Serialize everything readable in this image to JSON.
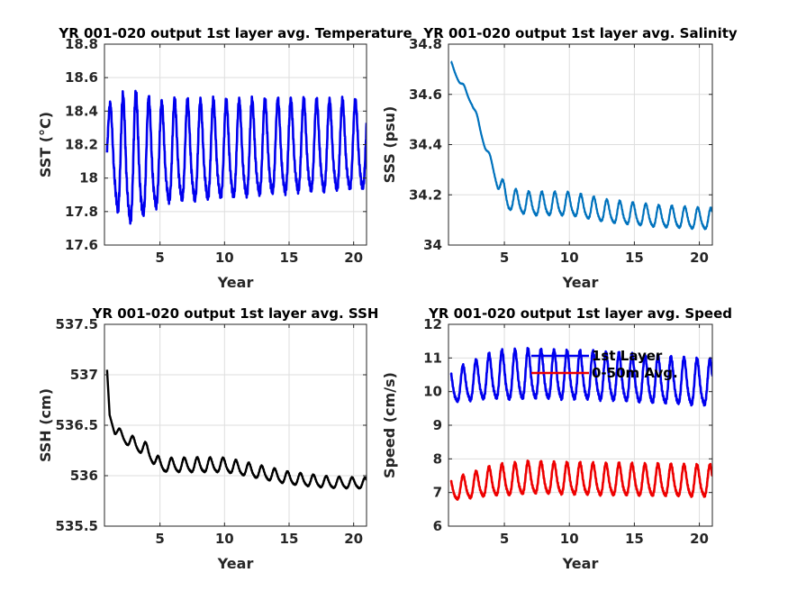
{
  "figure": {
    "background": "#ffffff",
    "grid": true
  },
  "chart_data": [
    {
      "type": "line",
      "title": "YR 001-020 output 1st layer avg. Temperature",
      "xlabel": "Year",
      "ylabel": "SST (°C)",
      "xlim": [
        0.7,
        21
      ],
      "ylim": [
        17.6,
        18.8
      ],
      "xticks": [
        5,
        10,
        15,
        20
      ],
      "yticks": [
        17.6,
        17.8,
        18,
        18.2,
        18.4,
        18.6,
        18.8
      ],
      "ytick_labels": [
        "17.6",
        "17.8",
        "18",
        "18.2",
        "18.4",
        "18.6",
        "18.8"
      ],
      "series": [
        {
          "color": "#0000ee",
          "line_width": 2.6,
          "model": "seasonal",
          "x_start": 0.9,
          "x_end": 21,
          "samples_per_year": 60,
          "baseline": [
            [
              0.9,
              18.2
            ],
            [
              2,
              18.07
            ],
            [
              4,
              18.1
            ],
            [
              6,
              18.13
            ],
            [
              10,
              18.14
            ],
            [
              14,
              18.16
            ],
            [
              21,
              18.17
            ]
          ],
          "amplitude": [
            [
              0.9,
              0.2
            ],
            [
              2,
              0.36
            ],
            [
              3,
              0.37
            ],
            [
              5,
              0.29
            ],
            [
              21,
              0.25
            ]
          ],
          "phase": -1.6
        }
      ]
    },
    {
      "type": "line",
      "title": "YR 001-020 output 1st layer avg. Salinity",
      "xlabel": "Year",
      "ylabel": "SSS (psu)",
      "xlim": [
        0.7,
        21
      ],
      "ylim": [
        34,
        34.8
      ],
      "xticks": [
        5,
        10,
        15,
        20
      ],
      "yticks": [
        34,
        34.2,
        34.4,
        34.6,
        34.8
      ],
      "ytick_labels": [
        "34",
        "34.2",
        "34.4",
        "34.6",
        "34.8"
      ],
      "series": [
        {
          "color": "#0072bd",
          "line_width": 2.2,
          "model": "seasonal",
          "x_start": 0.9,
          "x_end": 21,
          "samples_per_year": 60,
          "baseline": [
            [
              0.9,
              34.72
            ],
            [
              1.7,
              34.64
            ],
            [
              2.5,
              34.57
            ],
            [
              3.5,
              34.4
            ],
            [
              4.5,
              34.25
            ],
            [
              5.3,
              34.18
            ],
            [
              7,
              34.16
            ],
            [
              10,
              34.16
            ],
            [
              13,
              34.13
            ],
            [
              17,
              34.11
            ],
            [
              21,
              34.1
            ]
          ],
          "amplitude": [
            [
              0.9,
              0.01
            ],
            [
              4,
              0.015
            ],
            [
              5,
              0.04
            ],
            [
              7,
              0.045
            ],
            [
              21,
              0.04
            ]
          ],
          "phase": 0
        }
      ]
    },
    {
      "type": "line",
      "title": "YR 001-020 output 1st layer avg. SSH",
      "xlabel": "Year",
      "ylabel": "SSH (cm)",
      "xlim": [
        0.7,
        21
      ],
      "ylim": [
        535.5,
        537.5
      ],
      "xticks": [
        5,
        10,
        15,
        20
      ],
      "yticks": [
        535.5,
        536,
        536.5,
        537,
        537.5
      ],
      "ytick_labels": [
        "535.5",
        "536",
        "536.5",
        "537",
        "537.5"
      ],
      "series": [
        {
          "color": "#000000",
          "line_width": 2.4,
          "model": "seasonal",
          "x_start": 0.9,
          "x_end": 21,
          "samples_per_year": 60,
          "baseline": [
            [
              0.9,
              537.05
            ],
            [
              1.1,
              536.6
            ],
            [
              1.5,
              536.45
            ],
            [
              2.5,
              536.35
            ],
            [
              4,
              536.25
            ],
            [
              5,
              536.1
            ],
            [
              8,
              536.1
            ],
            [
              10,
              536.1
            ],
            [
              12,
              536.05
            ],
            [
              15,
              535.97
            ],
            [
              18,
              535.93
            ],
            [
              21,
              535.92
            ]
          ],
          "amplitude": [
            [
              0.9,
              0.0
            ],
            [
              1.5,
              0.04
            ],
            [
              3,
              0.06
            ],
            [
              8,
              0.07
            ],
            [
              21,
              0.05
            ]
          ],
          "phase": 0
        }
      ]
    },
    {
      "type": "line",
      "title": "YR 001-020 output 1st layer avg. Speed",
      "xlabel": "Year",
      "ylabel": "Speed (cm/s)",
      "xlim": [
        0.7,
        21
      ],
      "ylim": [
        6,
        12
      ],
      "xticks": [
        5,
        10,
        15,
        20
      ],
      "yticks": [
        6,
        7,
        8,
        9,
        10,
        11,
        12
      ],
      "ytick_labels": [
        "6",
        "7",
        "8",
        "9",
        "10",
        "11",
        "12"
      ],
      "legend": {
        "placement": "top-center"
      },
      "series": [
        {
          "name": "1st Layer",
          "color": "#0000ee",
          "line_width": 2.6,
          "model": "seasonal",
          "x_start": 0.9,
          "x_end": 21,
          "samples_per_year": 60,
          "baseline": [
            [
              0.9,
              10.1
            ],
            [
              4,
              10.4
            ],
            [
              7,
              10.45
            ],
            [
              12,
              10.4
            ],
            [
              16,
              10.3
            ],
            [
              21,
              10.2
            ]
          ],
          "amplitude": [
            [
              0.9,
              0.45
            ],
            [
              5,
              0.7
            ],
            [
              21,
              0.65
            ]
          ],
          "phase": 0.4
        },
        {
          "name": "0-50m Avg.",
          "color": "#ee0000",
          "line_width": 2.6,
          "model": "seasonal",
          "x_start": 0.9,
          "x_end": 21,
          "samples_per_year": 60,
          "baseline": [
            [
              0.9,
              7.05
            ],
            [
              4,
              7.3
            ],
            [
              7,
              7.4
            ],
            [
              12,
              7.35
            ],
            [
              21,
              7.3
            ]
          ],
          "amplitude": [
            [
              0.9,
              0.3
            ],
            [
              5,
              0.45
            ],
            [
              21,
              0.45
            ]
          ],
          "phase": 0.4
        }
      ]
    }
  ]
}
